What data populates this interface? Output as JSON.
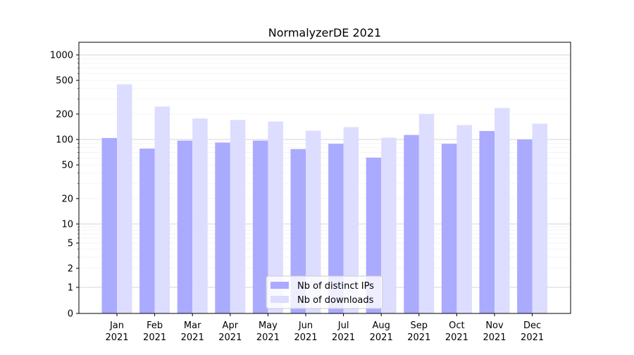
{
  "chart_data": {
    "type": "bar",
    "title": "NormalyzerDE 2021",
    "xlabel": "",
    "ylabel": "",
    "yscale": "symlog",
    "ylim": [
      0,
      1400
    ],
    "grid": true,
    "legend_position": "lower center",
    "categories": [
      {
        "month": "Jan",
        "year": "2021"
      },
      {
        "month": "Feb",
        "year": "2021"
      },
      {
        "month": "Mar",
        "year": "2021"
      },
      {
        "month": "Apr",
        "year": "2021"
      },
      {
        "month": "May",
        "year": "2021"
      },
      {
        "month": "Jun",
        "year": "2021"
      },
      {
        "month": "Jul",
        "year": "2021"
      },
      {
        "month": "Aug",
        "year": "2021"
      },
      {
        "month": "Sep",
        "year": "2021"
      },
      {
        "month": "Oct",
        "year": "2021"
      },
      {
        "month": "Nov",
        "year": "2021"
      },
      {
        "month": "Dec",
        "year": "2021"
      }
    ],
    "yticks": [
      0,
      1,
      2,
      5,
      10,
      20,
      50,
      100,
      200,
      500,
      1000
    ],
    "series": [
      {
        "name": "Nb of distinct IPs",
        "color": "#aaaaff",
        "values": [
          104,
          78,
          97,
          92,
          97,
          77,
          89,
          61,
          113,
          89,
          126,
          100
        ]
      },
      {
        "name": "Nb of downloads",
        "color": "#ddddff",
        "values": [
          450,
          245,
          177,
          170,
          163,
          127,
          140,
          105,
          200,
          148,
          236,
          154
        ]
      }
    ]
  }
}
